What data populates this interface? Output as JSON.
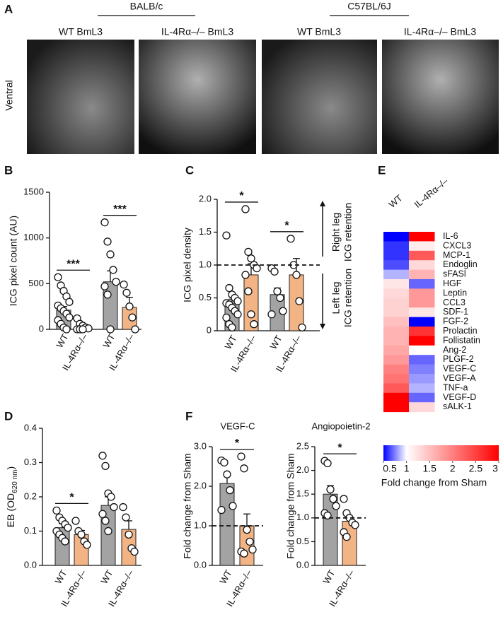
{
  "panel_a": {
    "label": "A",
    "groups": [
      "BALB/c",
      "C57BL/6J"
    ],
    "images": [
      "WT BmL3",
      "IL-4Rα–/– BmL3",
      "WT BmL3",
      "IL-4Rα–/– BmL3"
    ],
    "side_label": "Ventral"
  },
  "chart_data": [
    {
      "type": "bar-dot",
      "panel": "B",
      "ylabel": "ICG pixel count (AU)",
      "categories": [
        "WT",
        "IL-4Rα–/–",
        "WT",
        "IL-4Rα–/–"
      ],
      "colors": [
        "#a3a3a3",
        "#f3b485",
        "#a3a3a3",
        "#f3b485"
      ],
      "values": [
        210,
        20,
        520,
        240
      ],
      "errors": [
        40,
        10,
        120,
        110
      ],
      "points": [
        [
          570,
          480,
          420,
          360,
          300,
          260,
          230,
          200,
          170,
          130,
          100,
          60,
          20,
          0
        ],
        [
          120,
          60,
          40,
          20,
          10,
          0,
          0,
          0
        ],
        [
          1170,
          960,
          820,
          650,
          520,
          470,
          380,
          0
        ],
        [
          490,
          400,
          250,
          130,
          0
        ]
      ],
      "ylim": [
        0,
        1500
      ],
      "yticks": [
        0,
        500,
        1000,
        1500
      ],
      "significance": [
        "***",
        "***"
      ]
    },
    {
      "type": "bar-dot",
      "panel": "C",
      "ylabel": "ICG pixel density",
      "categories": [
        "WT",
        "IL-4Rα–/–",
        "WT",
        "IL-4Rα–/–"
      ],
      "colors": [
        "#a3a3a3",
        "#f3b485",
        "#a3a3a3",
        "#f3b485"
      ],
      "values": [
        0.42,
        0.85,
        0.55,
        0.85
      ],
      "errors": [
        0.06,
        0.17,
        0.1,
        0.25
      ],
      "points": [
        [
          1.45,
          0.65,
          0.55,
          0.5,
          0.45,
          0.42,
          0.4,
          0.35,
          0.3,
          0.25,
          0.2,
          0.1,
          0.05
        ],
        [
          1.85,
          1.2,
          1.1,
          1.0,
          0.95,
          0.85,
          0.6,
          0.25,
          0.1
        ],
        [
          0.95,
          0.9,
          0.6,
          0.5,
          0.3,
          0.25
        ],
        [
          1.4,
          1.0,
          0.85,
          0.45,
          0.05
        ]
      ],
      "ylim": [
        0,
        2.0
      ],
      "yticks": [
        0,
        0.5,
        {
          "value": 1,
          "label": "1.0"
        },
        1.5,
        {
          "value": 2,
          "label": "2.0"
        }
      ],
      "hline": 1,
      "significance": [
        "*",
        "*"
      ],
      "annotations": [
        [
          "Right leg",
          "ICG retention"
        ],
        [
          "Left leg",
          "ICG retention"
        ]
      ]
    },
    {
      "type": "bar-dot",
      "panel": "D",
      "ylabel": [
        "EB (OD",
        "620 nm",
        ")"
      ],
      "categories": [
        "WT",
        "IL-4Rα–/–",
        "WT",
        "IL-4Rα–/–"
      ],
      "colors": [
        "#a3a3a3",
        "#f3b485",
        "#a3a3a3",
        "#f3b485"
      ],
      "values": [
        0.11,
        0.09,
        0.175,
        0.105
      ],
      "errors": [
        0.012,
        0.012,
        0.025,
        0.025
      ],
      "points": [
        [
          0.16,
          0.14,
          0.13,
          0.12,
          0.11,
          0.1,
          0.09,
          0.08,
          0.07
        ],
        [
          0.13,
          0.1,
          0.09,
          0.07,
          0.06
        ],
        [
          0.32,
          0.29,
          0.21,
          0.2,
          0.17,
          0.15,
          0.13,
          0.1
        ],
        [
          0.17,
          0.14,
          0.09,
          0.05,
          0.04
        ]
      ],
      "ylim": [
        0,
        0.4
      ],
      "yticks": [
        {
          "value": 0,
          "label": "0.0"
        },
        0.1,
        0.2,
        0.3,
        0.4
      ],
      "significance": [
        "*"
      ]
    },
    {
      "type": "bar-dot",
      "panel": "F",
      "title": "VEGF-C",
      "ylabel": "Fold change from Sham",
      "categories": [
        "WT",
        "IL-4Rα–/–"
      ],
      "colors": [
        "#a3a3a3",
        "#f3b485"
      ],
      "values": [
        2.07,
        1.0
      ],
      "errors": [
        0.25,
        0.3
      ],
      "points": [
        [
          2.65,
          2.6,
          2.3,
          1.9,
          1.5,
          1.4
        ],
        [
          2.75,
          2.45,
          0.9,
          0.6,
          0.4,
          0.35,
          0.3
        ]
      ],
      "ylim": [
        0,
        3.0
      ],
      "yticks": [
        {
          "value": 0,
          "label": "0.0"
        },
        {
          "value": 1,
          "label": "1.0"
        },
        {
          "value": 2,
          "label": "2.0"
        },
        {
          "value": 3,
          "label": "3.0"
        }
      ],
      "hline": 1,
      "significance": [
        "*"
      ]
    },
    {
      "type": "bar-dot",
      "title": "Angiopoietin-2",
      "ylabel": "Fold change from Sham",
      "categories": [
        "WT",
        "IL-4Rα–/–"
      ],
      "colors": [
        "#a3a3a3",
        "#f3b485"
      ],
      "values": [
        1.5,
        0.93
      ],
      "errors": [
        0.18,
        0.1
      ],
      "points": [
        [
          2.2,
          2.15,
          1.6,
          1.4,
          1.25,
          1.1,
          1.05
        ],
        [
          1.4,
          1.1,
          1.0,
          0.9,
          0.85,
          0.7,
          0.6
        ]
      ],
      "ylim": [
        0,
        2.5
      ],
      "yticks": [
        {
          "value": 0,
          "label": "0.0"
        },
        0.5,
        {
          "value": 1,
          "label": "1.0"
        },
        1.5,
        {
          "value": 2,
          "label": "2.0"
        },
        2.5
      ],
      "hline": 1,
      "significance": [
        "*"
      ]
    },
    {
      "type": "heatmap",
      "panel": "E",
      "columns": [
        "WT",
        "IL-4Rα–/–"
      ],
      "rows": [
        "IL-6",
        "CXCL3",
        "MCP-1",
        "Endoglin",
        "sFASl",
        "HGF",
        "Leptin",
        "CCL3",
        "SDF-1",
        "FGF-2",
        "Prolactin",
        "Follistatin",
        "Ang-2",
        "PLGF-2",
        "VEGF-C",
        "VEGF-A",
        "TNF-a",
        "VEGF-D",
        "sALK-1"
      ],
      "values": [
        [
          0.4,
          3.0
        ],
        [
          0.6,
          1.15
        ],
        [
          0.6,
          2.3
        ],
        [
          0.65,
          1.3
        ],
        [
          0.85,
          1.6
        ],
        [
          1.2,
          0.7
        ],
        [
          1.3,
          1.8
        ],
        [
          1.35,
          1.8
        ],
        [
          1.35,
          1.2
        ],
        [
          1.5,
          0.4
        ],
        [
          1.6,
          2.6
        ],
        [
          1.6,
          3.0
        ],
        [
          1.7,
          1.0
        ],
        [
          1.8,
          0.7
        ],
        [
          2.0,
          0.75
        ],
        [
          2.1,
          0.8
        ],
        [
          2.3,
          0.85
        ],
        [
          3.0,
          0.7
        ],
        [
          3.0,
          1.3
        ]
      ],
      "colors": [
        "#0000ff",
        "#ffffff",
        "#ff0000"
      ],
      "clim": [
        0.5,
        3
      ],
      "ccenter": 1,
      "cticks": [
        0.5,
        1,
        1.5,
        2,
        2.5,
        3
      ],
      "colorbar_label": "Fold change from Sham"
    }
  ]
}
